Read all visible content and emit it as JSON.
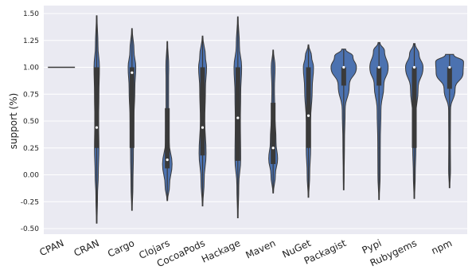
{
  "chart_data": {
    "type": "violin",
    "ylabel": "support (%)",
    "xlabel": "",
    "title": "",
    "ylim": [
      -0.55,
      1.55
    ],
    "yticks": [
      -0.5,
      -0.25,
      0.0,
      0.25,
      0.5,
      0.75,
      1.0,
      1.25,
      1.5
    ],
    "ytick_labels": [
      "-0.50",
      "-0.25",
      "0.00",
      "0.25",
      "0.50",
      "0.75",
      "1.00",
      "1.25",
      "1.50"
    ],
    "categories": [
      "CPAN",
      "CRAN",
      "Cargo",
      "Clojars",
      "CocoaPods",
      "Hackage",
      "Maven",
      "NuGet",
      "Packagist",
      "Pypi",
      "Rubygems",
      "npm"
    ],
    "grid": true,
    "colors": {
      "background": "#EAEAF2",
      "grid": "#FFFFFF",
      "violin_fill": "#4C72B0",
      "violin_edge": "#3a3a3a",
      "box": "#3a3a3a",
      "median": "#FFFFFF"
    },
    "violins": [
      {
        "name": "CPAN",
        "min": 1.0,
        "max": 1.0,
        "q1": 1.0,
        "median": 1.0,
        "q3": 1.0,
        "profile": [
          [
            1.0,
            1.0
          ]
        ]
      },
      {
        "name": "CRAN",
        "min": -0.45,
        "max": 1.48,
        "q1": 0.25,
        "median": 0.44,
        "q3": 1.0,
        "profile": [
          [
            -0.45,
            0.02
          ],
          [
            -0.2,
            0.05
          ],
          [
            0.0,
            0.1
          ],
          [
            0.25,
            0.14
          ],
          [
            0.5,
            0.12
          ],
          [
            0.75,
            0.14
          ],
          [
            1.0,
            0.17
          ],
          [
            1.2,
            0.08
          ],
          [
            1.48,
            0.02
          ]
        ]
      },
      {
        "name": "Cargo",
        "min": -0.33,
        "max": 1.36,
        "q1": 0.25,
        "median": 0.95,
        "q3": 1.0,
        "profile": [
          [
            -0.33,
            0.02
          ],
          [
            -0.1,
            0.06
          ],
          [
            0.2,
            0.09
          ],
          [
            0.5,
            0.12
          ],
          [
            0.8,
            0.18
          ],
          [
            1.0,
            0.24
          ],
          [
            1.15,
            0.13
          ],
          [
            1.36,
            0.02
          ]
        ]
      },
      {
        "name": "Clojars",
        "min": -0.24,
        "max": 1.24,
        "q1": 0.06,
        "median": 0.14,
        "q3": 0.62,
        "profile": [
          [
            -0.24,
            0.02
          ],
          [
            -0.1,
            0.14
          ],
          [
            0.1,
            0.3
          ],
          [
            0.3,
            0.12
          ],
          [
            0.6,
            0.08
          ],
          [
            0.9,
            0.08
          ],
          [
            1.0,
            0.09
          ],
          [
            1.24,
            0.02
          ]
        ]
      },
      {
        "name": "CocoaPods",
        "min": -0.29,
        "max": 1.29,
        "q1": 0.18,
        "median": 0.44,
        "q3": 1.0,
        "profile": [
          [
            -0.29,
            0.02
          ],
          [
            -0.05,
            0.1
          ],
          [
            0.2,
            0.22
          ],
          [
            0.5,
            0.14
          ],
          [
            0.8,
            0.18
          ],
          [
            1.0,
            0.25
          ],
          [
            1.1,
            0.18
          ],
          [
            1.29,
            0.02
          ]
        ]
      },
      {
        "name": "Hackage",
        "min": -0.4,
        "max": 1.47,
        "q1": 0.13,
        "median": 0.53,
        "q3": 1.0,
        "profile": [
          [
            -0.4,
            0.02
          ],
          [
            -0.1,
            0.06
          ],
          [
            0.15,
            0.18
          ],
          [
            0.5,
            0.16
          ],
          [
            0.75,
            0.18
          ],
          [
            1.0,
            0.24
          ],
          [
            1.2,
            0.1
          ],
          [
            1.47,
            0.02
          ]
        ]
      },
      {
        "name": "Maven",
        "min": -0.17,
        "max": 1.16,
        "q1": 0.1,
        "median": 0.25,
        "q3": 0.67,
        "profile": [
          [
            -0.17,
            0.02
          ],
          [
            0.0,
            0.14
          ],
          [
            0.15,
            0.28
          ],
          [
            0.3,
            0.18
          ],
          [
            0.6,
            0.1
          ],
          [
            0.8,
            0.08
          ],
          [
            1.0,
            0.12
          ],
          [
            1.16,
            0.02
          ]
        ]
      },
      {
        "name": "NuGet",
        "min": -0.21,
        "max": 1.21,
        "q1": 0.25,
        "median": 0.55,
        "q3": 1.0,
        "profile": [
          [
            -0.21,
            0.02
          ],
          [
            0.0,
            0.08
          ],
          [
            0.25,
            0.14
          ],
          [
            0.5,
            0.14
          ],
          [
            0.8,
            0.24
          ],
          [
            1.0,
            0.32
          ],
          [
            1.1,
            0.2
          ],
          [
            1.21,
            0.02
          ]
        ]
      },
      {
        "name": "Packagist",
        "min": -0.14,
        "max": 1.17,
        "q1": 0.83,
        "median": 1.0,
        "q3": 1.0,
        "profile": [
          [
            -0.14,
            0.02
          ],
          [
            0.0,
            0.03
          ],
          [
            0.3,
            0.05
          ],
          [
            0.6,
            0.09
          ],
          [
            0.83,
            0.35
          ],
          [
            1.0,
            0.8
          ],
          [
            1.1,
            0.58
          ],
          [
            1.17,
            0.12
          ]
        ]
      },
      {
        "name": "Pypi",
        "min": -0.23,
        "max": 1.23,
        "q1": 0.83,
        "median": 1.0,
        "q3": 1.0,
        "profile": [
          [
            -0.23,
            0.02
          ],
          [
            0.0,
            0.07
          ],
          [
            0.3,
            0.08
          ],
          [
            0.6,
            0.12
          ],
          [
            0.83,
            0.3
          ],
          [
            1.0,
            0.58
          ],
          [
            1.15,
            0.35
          ],
          [
            1.23,
            0.06
          ]
        ]
      },
      {
        "name": "Rubygems",
        "min": -0.22,
        "max": 1.22,
        "q1": 0.25,
        "median": 1.0,
        "q3": 1.0,
        "profile": [
          [
            -0.22,
            0.02
          ],
          [
            0.0,
            0.06
          ],
          [
            0.25,
            0.1
          ],
          [
            0.55,
            0.1
          ],
          [
            0.8,
            0.24
          ],
          [
            1.0,
            0.55
          ],
          [
            1.12,
            0.3
          ],
          [
            1.22,
            0.05
          ]
        ]
      },
      {
        "name": "npm",
        "min": -0.12,
        "max": 1.12,
        "q1": 0.8,
        "median": 1.0,
        "q3": 1.0,
        "profile": [
          [
            -0.12,
            0.02
          ],
          [
            0.05,
            0.06
          ],
          [
            0.3,
            0.05
          ],
          [
            0.6,
            0.06
          ],
          [
            0.8,
            0.35
          ],
          [
            0.95,
            0.85
          ],
          [
            1.05,
            0.88
          ],
          [
            1.12,
            0.25
          ]
        ]
      }
    ]
  }
}
